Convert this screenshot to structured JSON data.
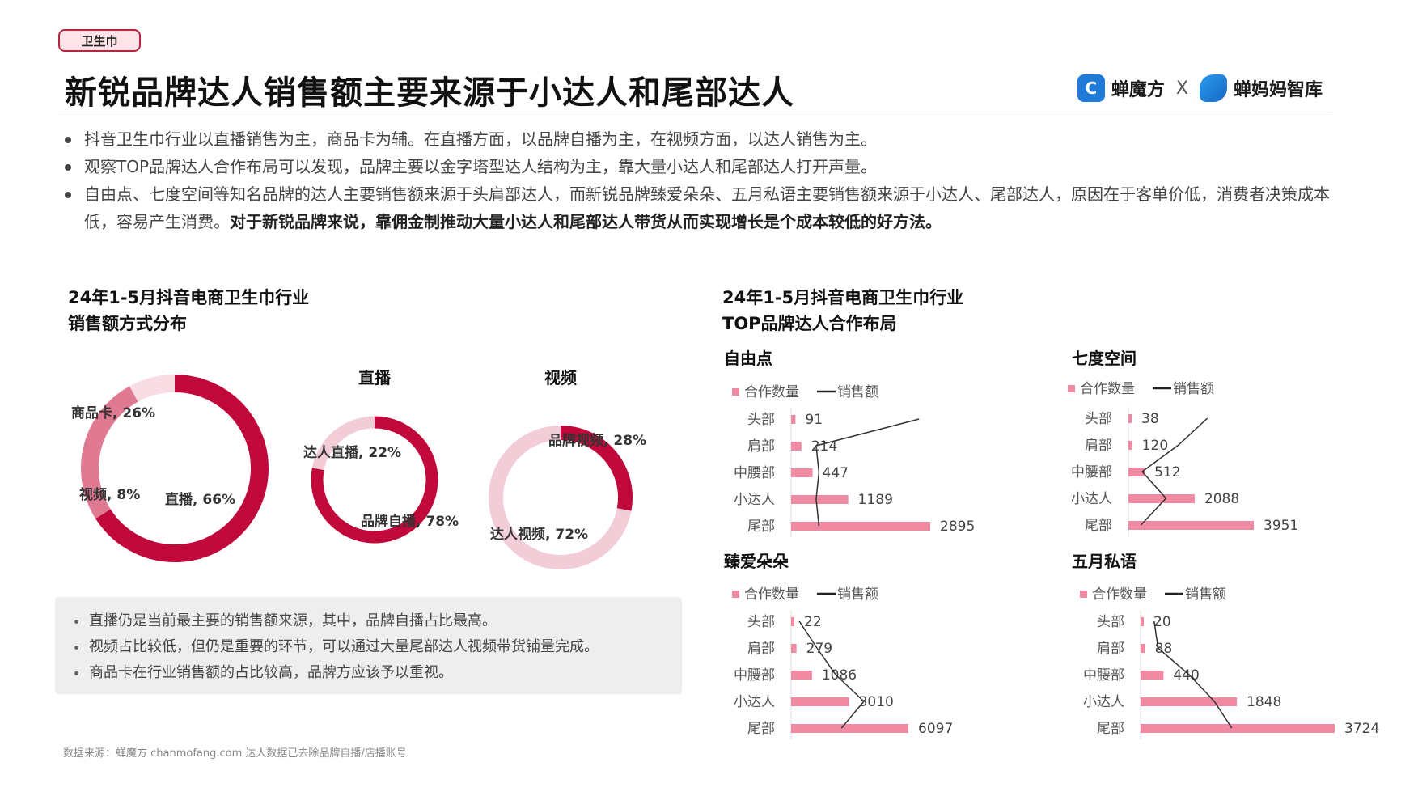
{
  "tag": "卫生巾",
  "title": "新锐品牌达人销售额主要来源于小达人和尾部达人",
  "logos": {
    "left": "蝉魔方",
    "x": "X",
    "right": "蝉妈妈智库"
  },
  "bullets": [
    {
      "text": "抖音卫生巾行业以直播销售为主，商品卡为辅。在直播方面，以品牌自播为主，在视频方面，以达人销售为主。"
    },
    {
      "text": "观察TOP品牌达人合作布局可以发现，品牌主要以金字塔型达人结构为主，靠大量小达人和尾部达人打开声量。"
    },
    {
      "text": "自由点、七度空间等知名品牌的达人主要销售额来源于头肩部达人，而新锐品牌臻爱朵朵、五月私语主要销售额来源于小达人、尾部达人，原因在于客单价低，消费者决策成本低，容易产生消费。",
      "bold": "对于新锐品牌来说，靠佣金制推动大量小达人和尾部达人带货从而实现增长是个成本较低的好方法。"
    }
  ],
  "left_section": {
    "title_line1": "24年1-5月抖音电商卫生巾行业",
    "title_line2": "销售额方式分布"
  },
  "right_section": {
    "title_line1": "24年1-5月抖音电商卫生巾行业",
    "title_line2": "TOP品牌达人合作布局"
  },
  "notes": [
    "直播仍是当前最主要的销售额来源，其中，品牌自播占比最高。",
    "视频占比较低，但仍是重要的环节，可以通过大量尾部达人视频带货铺量完成。",
    "商品卡在行业销售额的占比较高，品牌方应该予以重视。"
  ],
  "footer": "数据来源：蝉魔方 chanmofang.com   达人数据已去除品牌自播/店播账号",
  "colors": {
    "dark": "#c0083a",
    "mid": "#e07a93",
    "light": "#f2cdd7",
    "lighter": "#f8dde4",
    "bar": "#f08aa3"
  },
  "chart_data": [
    {
      "type": "pie",
      "title": "",
      "categories": [
        "直播",
        "商品卡",
        "视频"
      ],
      "values": [
        66,
        26,
        8
      ],
      "labels": [
        "直播, 66%",
        "商品卡, 26%",
        "视频, 8%"
      ]
    },
    {
      "type": "pie",
      "title": "直播",
      "categories": [
        "品牌自播",
        "达人直播"
      ],
      "values": [
        78,
        22
      ],
      "labels": [
        "品牌自播, 78%",
        "达人直播, 22%"
      ]
    },
    {
      "type": "pie",
      "title": "视频",
      "categories": [
        "品牌视频",
        "达人视频"
      ],
      "values": [
        28,
        72
      ],
      "labels": [
        "品牌视频, 28%",
        "达人视频, 72%"
      ]
    },
    {
      "type": "bar",
      "title": "自由点",
      "legend": [
        "合作数量",
        "销售额"
      ],
      "categories": [
        "头部",
        "肩部",
        "中腰部",
        "小达人",
        "尾部"
      ],
      "values": [
        91,
        214,
        447,
        1189,
        2895
      ],
      "line_x": [
        0.92,
        0.18,
        0.2,
        0.18,
        0.2
      ]
    },
    {
      "type": "bar",
      "title": "七度空间",
      "legend": [
        "合作数量",
        "销售额"
      ],
      "categories": [
        "头部",
        "肩部",
        "中腰部",
        "小达人",
        "尾部"
      ],
      "values": [
        38,
        120,
        512,
        2088,
        3951
      ],
      "line_x": [
        0.63,
        0.4,
        0.11,
        0.3,
        0.1
      ]
    },
    {
      "type": "bar",
      "title": "臻爱朵朵",
      "legend": [
        "合作数量",
        "销售额"
      ],
      "categories": [
        "头部",
        "肩部",
        "中腰部",
        "小达人",
        "尾部"
      ],
      "values": [
        22,
        279,
        1086,
        3010,
        6097
      ],
      "line_x": [
        0.07,
        0.22,
        0.38,
        0.62,
        0.43
      ]
    },
    {
      "type": "bar",
      "title": "五月私语",
      "legend": [
        "合作数量",
        "销售额"
      ],
      "categories": [
        "头部",
        "肩部",
        "中腰部",
        "小达人",
        "尾部"
      ],
      "values": [
        20,
        88,
        440,
        1848,
        3724
      ],
      "line_x": [
        0.07,
        0.09,
        0.25,
        0.38,
        0.47
      ]
    }
  ]
}
